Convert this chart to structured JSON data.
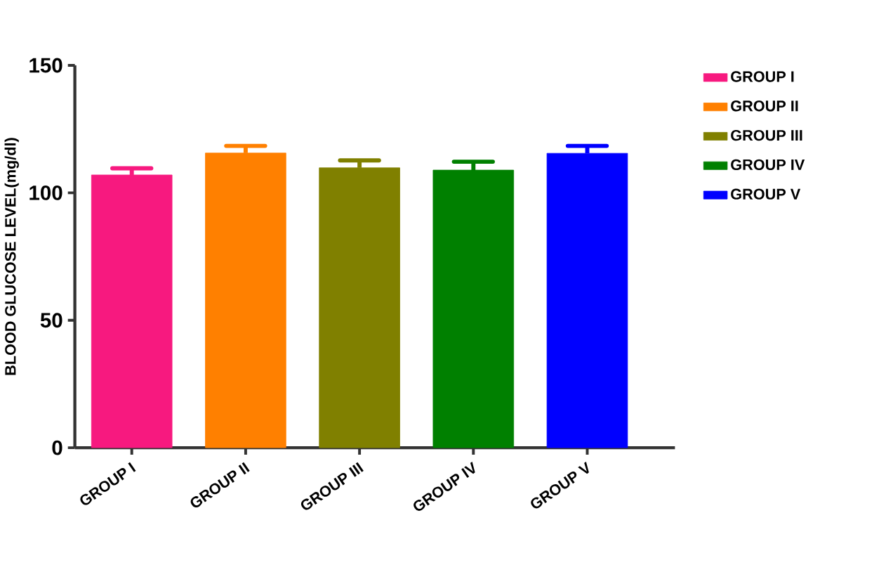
{
  "chart_data": {
    "type": "bar",
    "ylabel": "BLOOD GLUCOSE LEVEL(mg/dl)",
    "categories": [
      "GROUP I",
      "GROUP II",
      "GROUP III",
      "GROUP IV",
      "GROUP V"
    ],
    "series": [
      {
        "name": "GROUP I",
        "color": "#f7197f",
        "values": [
          107,
          null,
          null,
          null,
          null
        ],
        "errors": [
          [
            107,
            109.6
          ],
          null,
          null,
          null,
          null
        ]
      },
      {
        "name": "GROUP II",
        "color": "#ff8000",
        "values": [
          null,
          115.6,
          null,
          null,
          null
        ],
        "errors": [
          null,
          [
            115.6,
            118.4
          ],
          null,
          null,
          null
        ]
      },
      {
        "name": "GROUP III",
        "color": "#808000",
        "values": [
          null,
          null,
          109.8,
          null,
          null
        ],
        "errors": [
          null,
          null,
          [
            109.8,
            112.7
          ],
          null,
          null
        ]
      },
      {
        "name": "GROUP IV",
        "color": "#008000",
        "values": [
          null,
          null,
          null,
          108.9,
          null
        ],
        "errors": [
          null,
          null,
          null,
          [
            108.9,
            112.2
          ],
          null
        ]
      },
      {
        "name": "GROUP V",
        "color": "#0000ff",
        "values": [
          null,
          null,
          null,
          null,
          115.5
        ],
        "errors": [
          null,
          null,
          null,
          null,
          [
            115.5,
            118.4
          ]
        ]
      }
    ],
    "ylim": [
      0,
      150
    ],
    "yticks": [
      0,
      50,
      100,
      150
    ],
    "legend": "top right"
  }
}
